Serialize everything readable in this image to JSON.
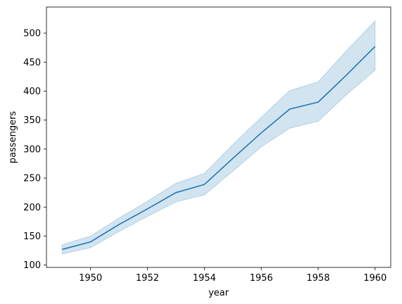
{
  "chart_data": {
    "type": "line",
    "title": "",
    "xlabel": "year",
    "ylabel": "passengers",
    "x": [
      1949,
      1950,
      1951,
      1952,
      1953,
      1954,
      1955,
      1956,
      1957,
      1958,
      1959,
      1960
    ],
    "series": [
      {
        "values": [
          127,
          140,
          170,
          197,
          225,
          239,
          284,
          328,
          369,
          381,
          428,
          477
        ],
        "ci_lower": [
          119,
          130,
          158,
          184,
          209,
          221,
          262,
          304,
          336,
          348,
          394,
          436
        ],
        "ci_upper": [
          135,
          150,
          181,
          210,
          241,
          258,
          308,
          355,
          401,
          416,
          470,
          521
        ],
        "color": "#1f77b4",
        "band_color": "#1f77b4"
      }
    ],
    "xlim": [
      1948.45,
      1960.55
    ],
    "ylim": [
      96,
      545
    ],
    "xticks": [
      1950,
      1952,
      1954,
      1956,
      1958,
      1960
    ],
    "yticks": [
      100,
      150,
      200,
      250,
      300,
      350,
      400,
      450,
      500
    ],
    "grid": false,
    "legend": "none"
  }
}
